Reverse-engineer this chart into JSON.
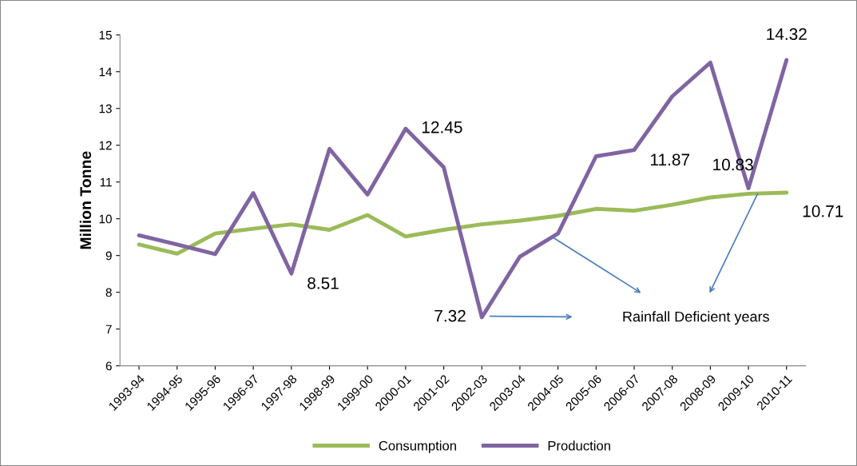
{
  "chart_data": {
    "type": "line",
    "ylabel": "Million Tonne",
    "categories": [
      "1993-94",
      "1994-95",
      "1995-96",
      "1996-97",
      "1997-98",
      "1998-99",
      "1999-00",
      "2000-01",
      "2001-02",
      "2002-03",
      "2003-04",
      "2004-05",
      "2005-06",
      "2006-07",
      "2007-08",
      "2008-09",
      "2009-10",
      "2010-11"
    ],
    "series": [
      {
        "name": "Consumption",
        "color": "#9bbb59",
        "values": [
          9.3,
          9.05,
          9.6,
          9.73,
          9.85,
          9.7,
          10.1,
          9.52,
          9.7,
          9.85,
          9.95,
          10.08,
          10.27,
          10.22,
          10.38,
          10.58,
          10.68,
          10.71
        ],
        "value_labels": [
          null,
          null,
          null,
          null,
          null,
          null,
          null,
          null,
          null,
          null,
          null,
          null,
          null,
          null,
          null,
          null,
          null,
          "10.71"
        ]
      },
      {
        "name": "Production",
        "color": "#8064a2",
        "values": [
          9.55,
          9.3,
          9.04,
          10.7,
          8.51,
          11.9,
          10.66,
          12.45,
          11.4,
          7.32,
          8.97,
          9.6,
          11.7,
          11.87,
          13.33,
          14.25,
          10.83,
          14.32
        ],
        "value_labels": [
          null,
          null,
          null,
          null,
          "8.51",
          null,
          null,
          "12.45",
          null,
          "7.32",
          null,
          null,
          null,
          "11.87",
          null,
          null,
          "10.83",
          "14.32"
        ]
      }
    ],
    "annotations": [
      "Rainfall Deficient years"
    ],
    "ylim": [
      6,
      15
    ],
    "yticks": [
      6,
      7,
      8,
      9,
      10,
      11,
      12,
      13,
      14,
      15
    ],
    "grid": false,
    "legend": "bottom",
    "marker": "none",
    "line_style": "solid"
  }
}
